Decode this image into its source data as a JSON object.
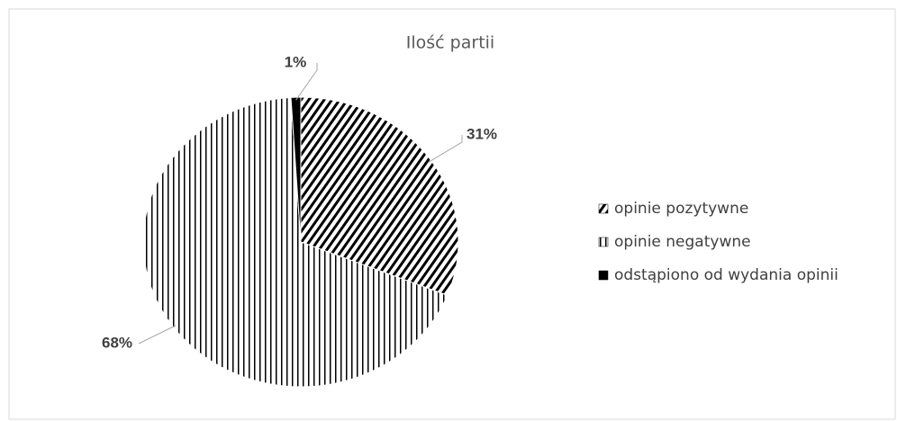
{
  "chart_data": {
    "type": "pie",
    "title": "Ilość partii",
    "categories": [
      "opinie pozytywne",
      "opinie negatywne",
      "odstąpiono od wydania opinii"
    ],
    "values": [
      31,
      68,
      1
    ],
    "value_labels": [
      "31%",
      "68%",
      "1%"
    ],
    "patterns": [
      "diagonal",
      "vertical",
      "solid"
    ],
    "colors": [
      "#000000",
      "#000000",
      "#000000"
    ],
    "legend": "right"
  }
}
